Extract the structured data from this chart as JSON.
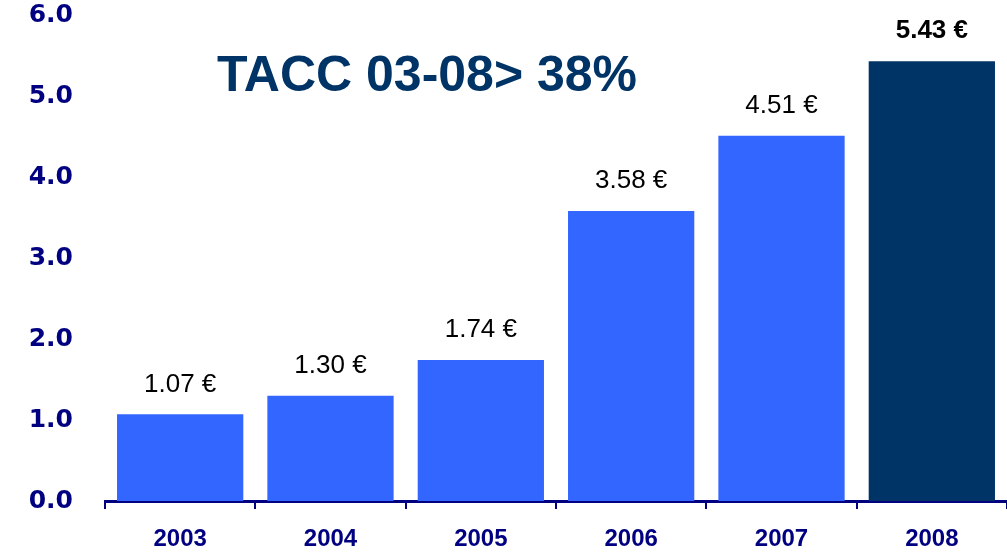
{
  "chart_data": {
    "type": "bar",
    "categories": [
      "2003",
      "2004",
      "2005",
      "2006",
      "2007",
      "2008"
    ],
    "values": [
      1.07,
      1.3,
      1.74,
      3.58,
      4.51,
      5.43
    ],
    "colors": [
      "#3366ff",
      "#3366ff",
      "#3366ff",
      "#3366ff",
      "#3366ff",
      "#003366"
    ],
    "value_labels": [
      "1.07 €",
      "1.30 €",
      "1.74 €",
      "3.58 €",
      "4.51 €",
      "5.43 €"
    ],
    "ylim": [
      0,
      6
    ],
    "yticks": [
      {
        "value": 0,
        "label": "0.0"
      },
      {
        "value": 1,
        "label": "1.0"
      },
      {
        "value": 2,
        "label": "2.0"
      },
      {
        "value": 3,
        "label": "3.0"
      },
      {
        "value": 4,
        "label": "4.0"
      },
      {
        "value": 5,
        "label": "5.0"
      },
      {
        "value": 6,
        "label": "6.0"
      }
    ],
    "annotations": [
      "TACC 03-08> 38%"
    ]
  }
}
